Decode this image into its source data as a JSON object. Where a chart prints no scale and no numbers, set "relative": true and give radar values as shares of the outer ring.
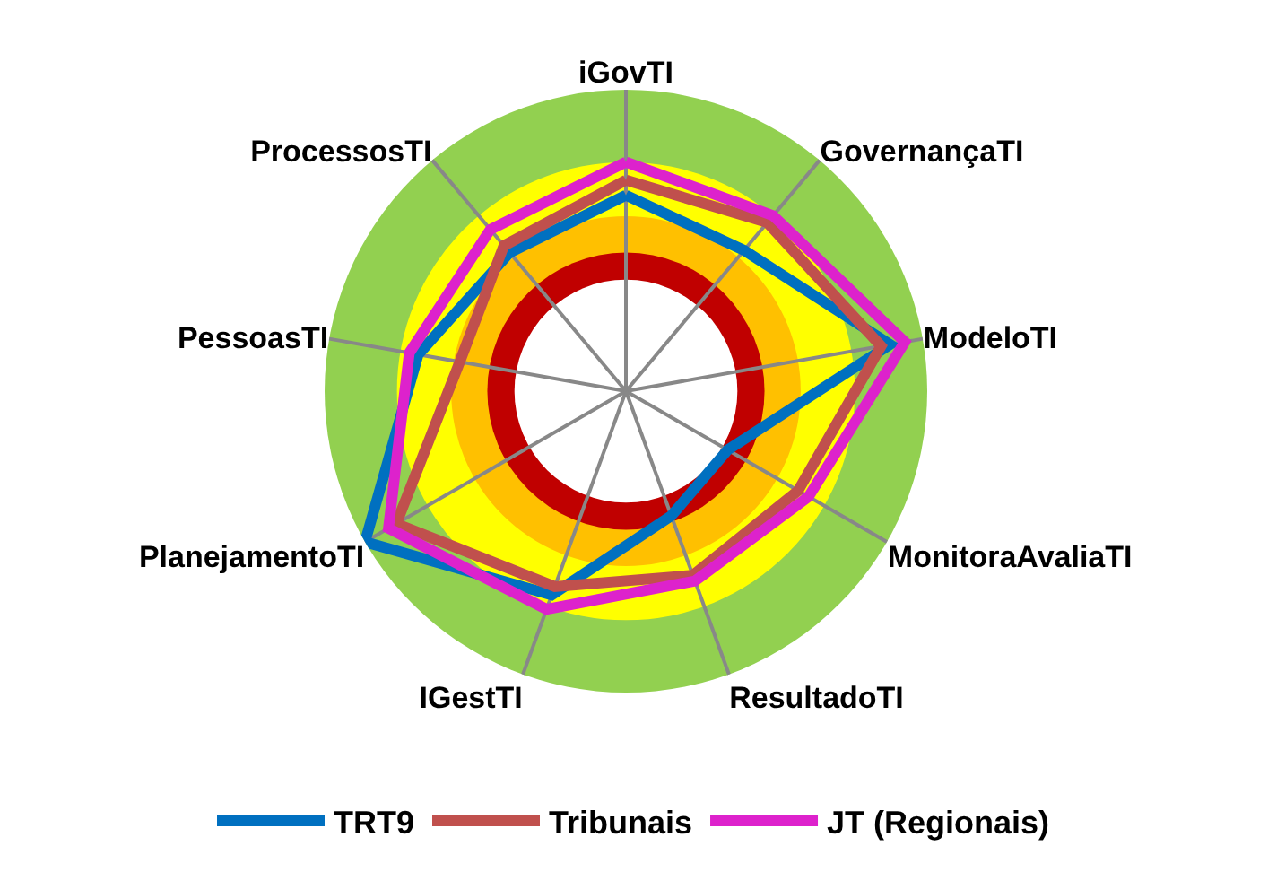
{
  "chart_data": {
    "type": "radar",
    "relative": true,
    "categories": [
      "iGovTI",
      "GovernançaTI",
      "ModeloTI",
      "MonitoraAvaliaTI",
      "ResultadoTI",
      "IGestTI",
      "PlanejamentoTI",
      "PessoasTI",
      "ProcessosTI"
    ],
    "series": [
      {
        "name": "TRT9",
        "color": "#0070c0",
        "values": [
          0.65,
          0.61,
          0.89,
          0.39,
          0.44,
          0.72,
          1.0,
          0.7,
          0.6
        ]
      },
      {
        "name": "Tribunais",
        "color": "#c0504d",
        "values": [
          0.7,
          0.73,
          0.86,
          0.66,
          0.65,
          0.69,
          0.88,
          0.56,
          0.63
        ]
      },
      {
        "name": "JT (Regionais)",
        "color": "#dd22cc",
        "values": [
          0.76,
          0.76,
          0.94,
          0.7,
          0.67,
          0.77,
          0.91,
          0.73,
          0.7
        ]
      }
    ],
    "legend": "bottom",
    "marker": "none",
    "line_style": "solid"
  }
}
